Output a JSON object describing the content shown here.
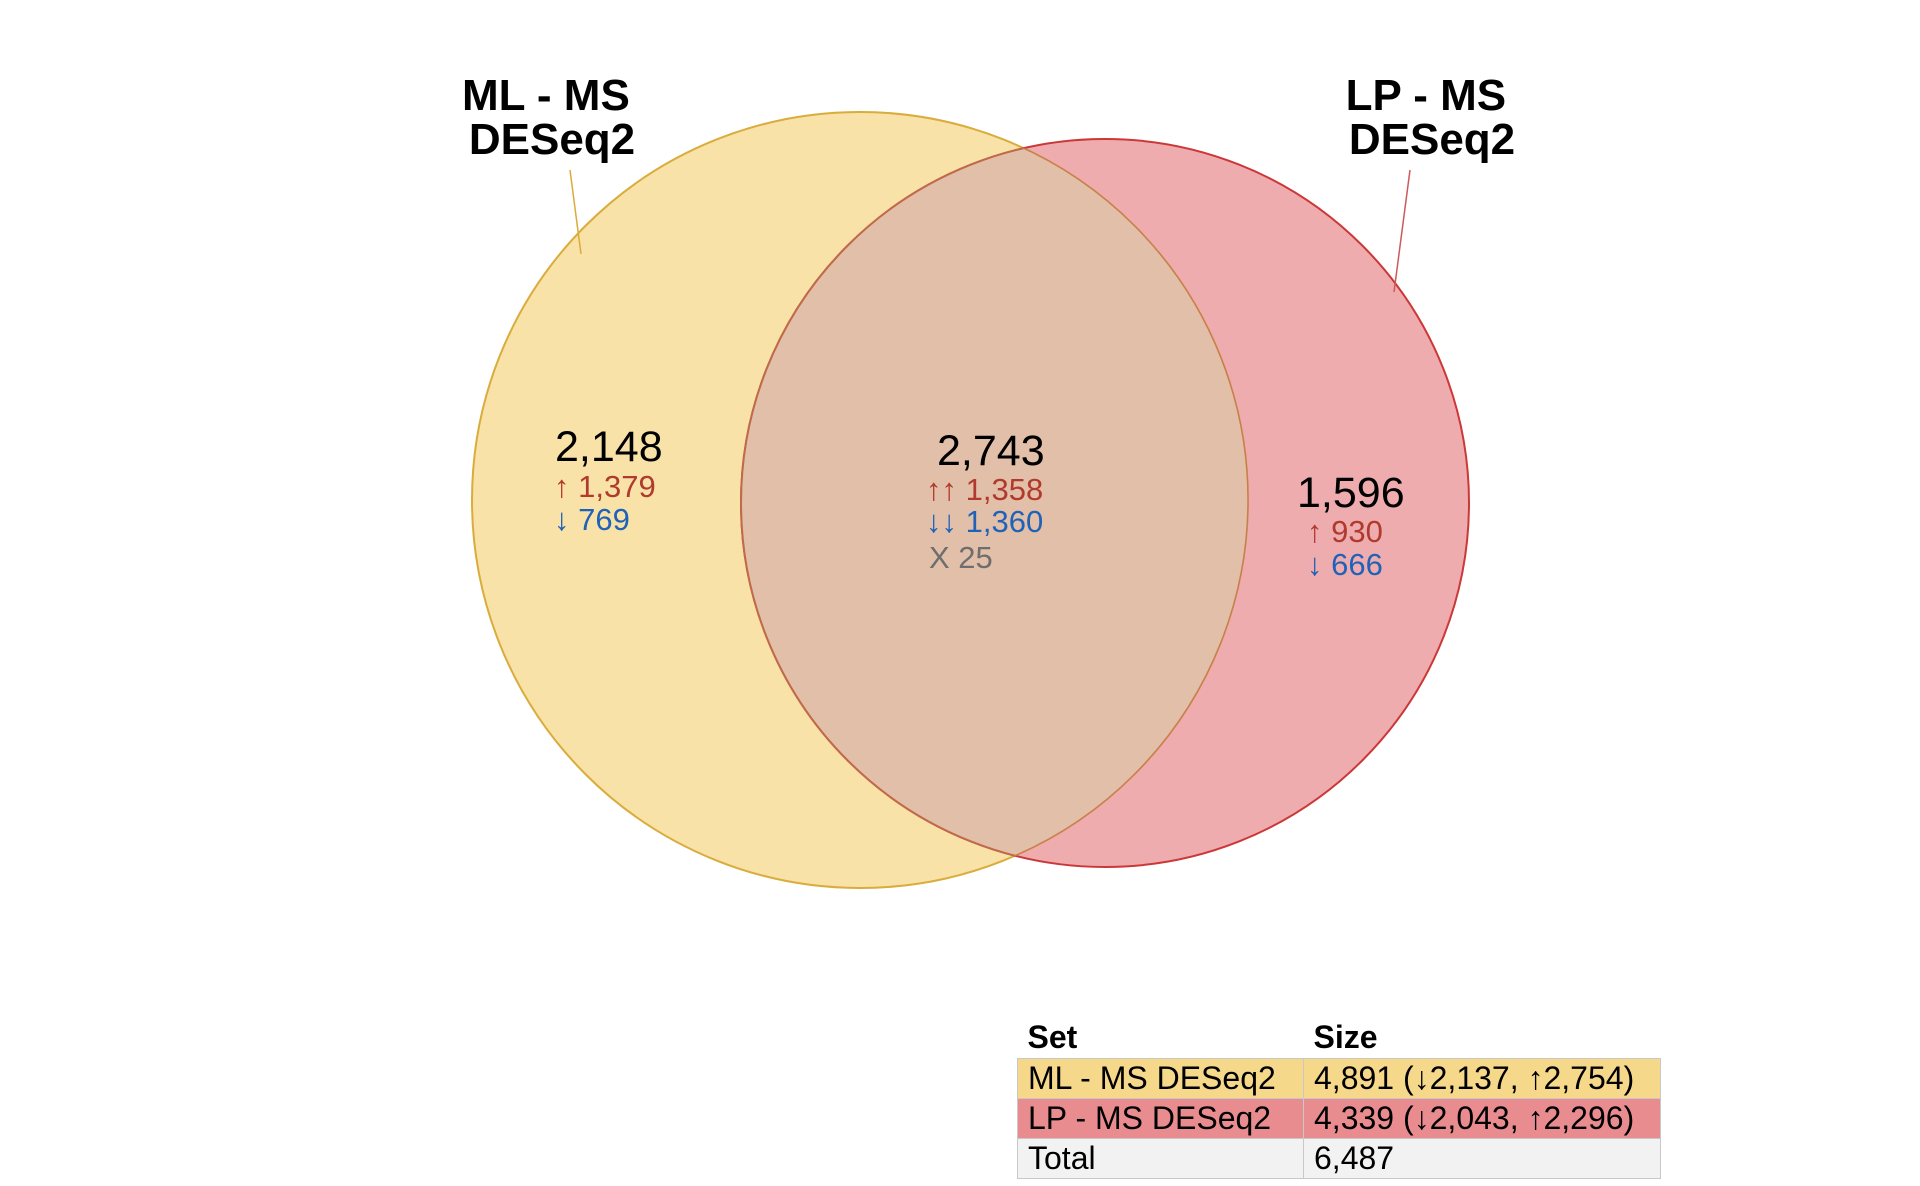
{
  "colors": {
    "set_a_fill": "#f5d88a",
    "set_a_stroke": "#d9ac3c",
    "set_b_fill": "#e88c90",
    "set_b_stroke": "#cc3838",
    "overlap_fill": "#e2bfa8",
    "overlap_stroke": "#c06a4a",
    "up_color": "#b03a2e",
    "down_color": "#1f62b8",
    "neutral_color": "#6e6e6e",
    "total_row_bg": "#f2f2f2"
  },
  "sets": [
    {
      "title_line1": "ML - MS",
      "title_line2": "DESeq2"
    },
    {
      "title_line1": "LP - MS",
      "title_line2": "DESeq2"
    }
  ],
  "regions": {
    "only_a": {
      "total": "2,148",
      "up": "↑ 1,379",
      "down": "↓ 769"
    },
    "both": {
      "total": "2,743",
      "up_up": "↑↑ 1,358",
      "down_down": "↓↓ 1,360",
      "mixed": "X 25"
    },
    "only_b": {
      "total": "1,596",
      "up": "↑ 930",
      "down": "↓ 666"
    }
  },
  "legend": {
    "header_set": "Set",
    "header_size": "Size",
    "rows": [
      {
        "set": "ML - MS DESeq2",
        "size": "4,891 (↓2,137, ↑2,754)"
      },
      {
        "set": "LP - MS DESeq2",
        "size": "4,339 (↓2,043, ↑2,296)"
      },
      {
        "set": "Total",
        "size": "6,487"
      }
    ]
  }
}
